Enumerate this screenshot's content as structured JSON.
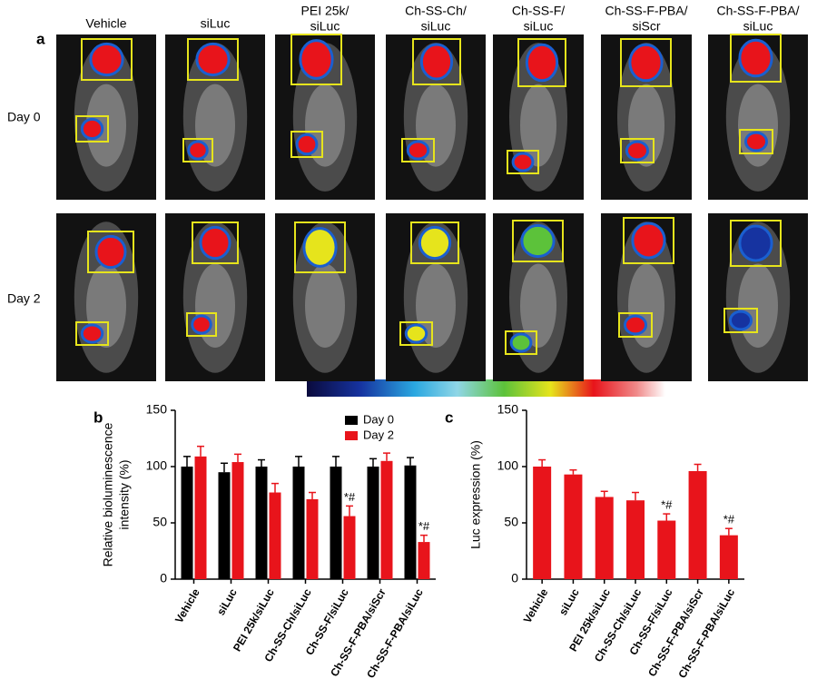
{
  "figure": {
    "panel_label": "a",
    "columns": [
      [
        "Vehicle"
      ],
      [
        "siLuc"
      ],
      [
        "PEI 25k/",
        "siLuc"
      ],
      [
        "Ch-SS-Ch/",
        "siLuc"
      ],
      [
        "Ch-SS-F/",
        "siLuc"
      ],
      [
        "Ch-SS-F-PBA/",
        "siScr"
      ],
      [
        "Ch-SS-F-PBA/",
        "siLuc"
      ]
    ],
    "rows": [
      "Day 0",
      "Day 2"
    ]
  },
  "chart_data": [
    {
      "type": "bar",
      "panel_label": "b",
      "ylabel": [
        "Relative bioluminescence",
        "intensity (%)"
      ],
      "categories": [
        "Vehicle",
        "siLuc",
        "PEI 25k/siLuc",
        "Ch-SS-Ch/siLuc",
        "Ch-SS-F/siLuc",
        "Ch-SS-F-PBA/siScr",
        "Ch-SS-F-PBA/siLuc"
      ],
      "series": [
        {
          "name": "Day 0",
          "color": "#000000",
          "values": [
            100,
            95,
            100,
            100,
            100,
            100,
            101
          ],
          "errors": [
            9,
            8,
            6,
            9,
            9,
            7,
            7
          ]
        },
        {
          "name": "Day 2",
          "color": "#e8141b",
          "values": [
            109,
            104,
            77,
            71,
            56,
            105,
            33
          ],
          "errors": [
            9,
            7,
            8,
            6,
            9,
            7,
            6
          ],
          "value_annotations": [
            null,
            null,
            null,
            null,
            "*#",
            null,
            "*#"
          ]
        }
      ],
      "ylim": [
        0,
        150
      ],
      "yticks": [
        0,
        50,
        100,
        150
      ],
      "legend": "upper right"
    },
    {
      "type": "bar",
      "panel_label": "c",
      "ylabel": [
        "Luc expression (%)"
      ],
      "categories": [
        "Vehicle",
        "siLuc",
        "PEI 25k/siLuc",
        "Ch-SS-Ch/siLuc",
        "Ch-SS-F/siLuc",
        "Ch-SS-F-PBA/siScr",
        "Ch-SS-F-PBA/siLuc"
      ],
      "series": [
        {
          "color": "#e8141b",
          "values": [
            100,
            93,
            73,
            70,
            52,
            96,
            39
          ],
          "errors": [
            6,
            4,
            5,
            7,
            6,
            6,
            6
          ],
          "value_annotations": [
            null,
            null,
            null,
            null,
            "*#",
            null,
            "*#"
          ]
        }
      ],
      "ylim": [
        0,
        150
      ],
      "yticks": [
        0,
        50,
        100,
        150
      ]
    }
  ]
}
